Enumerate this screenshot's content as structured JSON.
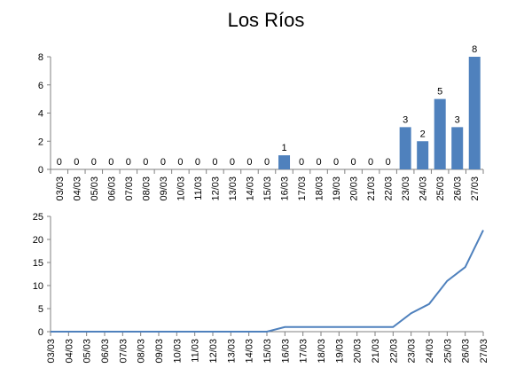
{
  "title": "Los Ríos",
  "colors": {
    "series": "#4f81bd",
    "axis": "#808080",
    "text": "#000000"
  },
  "chart_data": [
    {
      "type": "bar",
      "title": "Los Ríos",
      "categories": [
        "03/03",
        "04/03",
        "05/03",
        "06/03",
        "07/03",
        "08/03",
        "09/03",
        "10/03",
        "11/03",
        "12/03",
        "13/03",
        "14/03",
        "15/03",
        "16/03",
        "17/03",
        "18/03",
        "19/03",
        "20/03",
        "21/03",
        "22/03",
        "23/03",
        "24/03",
        "25/03",
        "26/03",
        "27/03"
      ],
      "values": [
        0,
        0,
        0,
        0,
        0,
        0,
        0,
        0,
        0,
        0,
        0,
        0,
        0,
        1,
        0,
        0,
        0,
        0,
        0,
        0,
        3,
        2,
        5,
        3,
        8
      ],
      "ylim": [
        0,
        8
      ],
      "yticks": [
        0,
        2,
        4,
        6,
        8
      ],
      "data_labels": true,
      "grid": false,
      "xlabel": "",
      "ylabel": ""
    },
    {
      "type": "line",
      "categories": [
        "03/03",
        "04/03",
        "05/03",
        "06/03",
        "07/03",
        "08/03",
        "09/03",
        "10/03",
        "11/03",
        "12/03",
        "13/03",
        "14/03",
        "15/03",
        "16/03",
        "17/03",
        "18/03",
        "19/03",
        "20/03",
        "21/03",
        "22/03",
        "23/03",
        "24/03",
        "25/03",
        "26/03",
        "27/03"
      ],
      "values": [
        0,
        0,
        0,
        0,
        0,
        0,
        0,
        0,
        0,
        0,
        0,
        0,
        0,
        1,
        1,
        1,
        1,
        1,
        1,
        1,
        4,
        6,
        11,
        14,
        22
      ],
      "ylim": [
        0,
        25
      ],
      "yticks": [
        0,
        5,
        10,
        15,
        20,
        25
      ],
      "grid": false,
      "xlabel": "",
      "ylabel": ""
    }
  ]
}
